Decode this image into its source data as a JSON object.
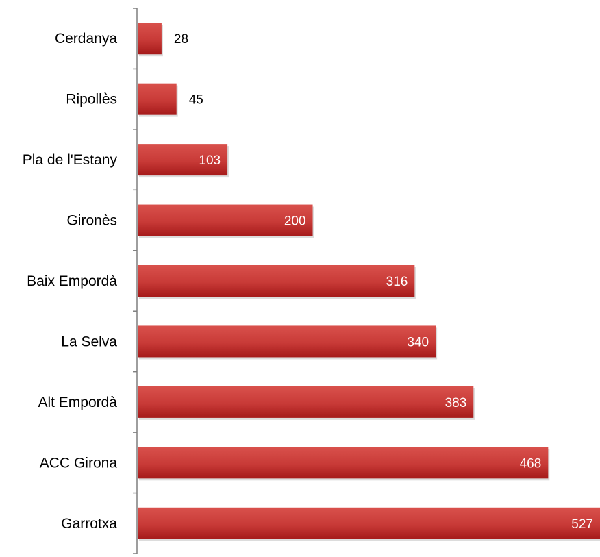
{
  "chart_data": {
    "type": "bar",
    "orientation": "horizontal",
    "title": "",
    "xlabel": "",
    "ylabel": "",
    "categories": [
      "Cerdanya",
      "Ripollès",
      "Pla de l'Estany",
      "Gironès",
      "Baix Empordà",
      "La Selva",
      "Alt Empordà",
      "ACC Girona",
      "Garrotxa"
    ],
    "values": [
      28,
      45,
      103,
      200,
      316,
      340,
      383,
      468,
      527
    ],
    "data_labels": [
      "28",
      "45",
      "103",
      "200",
      "316",
      "340",
      "383",
      "468",
      "527"
    ],
    "xlim": [
      0,
      527
    ],
    "grid": false,
    "legend": "none",
    "value_axis_visible": false
  },
  "colors": {
    "bar_top": "#d9514c",
    "bar_bottom": "#a51a1a",
    "bar_shadow": "#bfbfbf",
    "axis": "#7f7f7f",
    "label_inside": "#ffffff",
    "label_outside": "#000000"
  }
}
